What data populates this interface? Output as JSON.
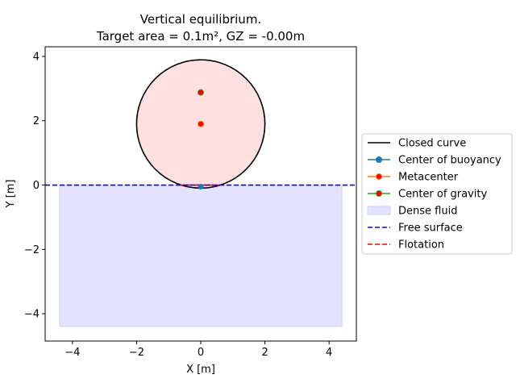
{
  "chart_data": {
    "type": "line",
    "title_line1": "Vertical equilibrium.",
    "title_line2": "Target area = 0.1m², GZ = -0.00m",
    "xlabel": "X [m]",
    "ylabel": "Y [m]",
    "xlim": [
      -4.85,
      4.85
    ],
    "ylim": [
      -4.85,
      4.3
    ],
    "xticks": [
      -4,
      -2,
      0,
      2,
      4
    ],
    "yticks": [
      -4,
      -2,
      0,
      2,
      4
    ],
    "xtick_labels": [
      "−4",
      "−2",
      "0",
      "2",
      "4"
    ],
    "ytick_labels": [
      "−4",
      "−2",
      "0",
      "2",
      "4"
    ],
    "legend_position": "center-right, outside",
    "closed_curve": {
      "name": "Closed curve",
      "color": "#000000",
      "center": [
        0.0,
        1.9
      ],
      "radius": 2.0
    },
    "hull_fill": {
      "color": "#ffe0e0",
      "center": [
        0.0,
        1.9
      ],
      "radius": 2.0
    },
    "center_of_buoyancy": {
      "name": "Center of buoyancy",
      "color": "#1f77b4",
      "x": 0.0,
      "y": -0.05
    },
    "metacenter": {
      "name": "Metacenter",
      "color": "#ff7f0e",
      "face": "#ff0000",
      "x": 0.0,
      "y": 1.9
    },
    "center_of_gravity": {
      "name": "Center of gravity",
      "color": "#2ca02c",
      "face": "#ff0000",
      "x": 0.0,
      "y": 2.88
    },
    "dense_fluid": {
      "name": "Dense fluid",
      "color": "#e3e3ff",
      "x": [
        -4.4,
        4.4
      ],
      "y": [
        -4.4,
        0.0
      ]
    },
    "free_surface": {
      "name": "Free surface",
      "color": "#0000ff",
      "y": 0.0
    },
    "flotation": {
      "name": "Flotation",
      "color": "#ff0000",
      "x": [
        -0.66,
        0.66
      ],
      "y": 0.0
    },
    "legend": [
      "Closed curve",
      "Center of buoyancy",
      "Metacenter",
      "Center of gravity",
      "Dense fluid",
      "Free surface",
      "Flotation"
    ]
  }
}
